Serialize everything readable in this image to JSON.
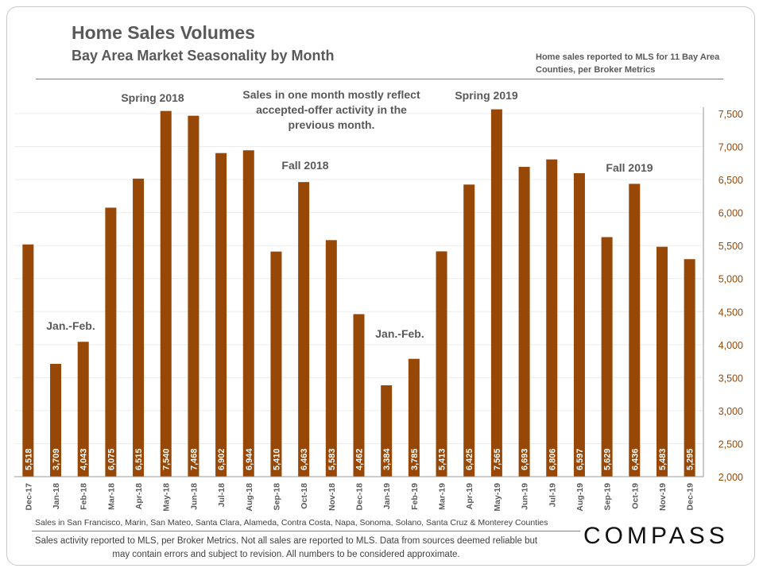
{
  "header": {
    "title": "Home Sales Volumes",
    "subtitle": "Bay Area Market Seasonality  by Month",
    "note": "Home sales reported to MLS for 11 Bay Area Counties, per Broker Metrics"
  },
  "annotations": {
    "spring2018": "Spring 2018",
    "spring2019": "Spring 2019",
    "fall2018": "Fall 2018",
    "fall2019": "Fall 2019",
    "janfeb1": "Jan.-Feb.",
    "janfeb2": "Jan.-Feb.",
    "center_note": [
      "Sales in one month mostly reflect",
      "accepted-offer activity in the",
      "previous month."
    ]
  },
  "chart_data": {
    "type": "bar",
    "categories": [
      "Dec-17",
      "Jan-18",
      "Feb-18",
      "Mar-18",
      "Apr-18",
      "May-18",
      "Jun-18",
      "Jul-18",
      "Aug-18",
      "Sep-18",
      "Oct-18",
      "Nov-18",
      "Dec-18",
      "Jan-19",
      "Feb-19",
      "Mar-19",
      "Apr-19",
      "May-19",
      "Jun-19",
      "Jul-19",
      "Aug-19",
      "Sep-19",
      "Oct-19",
      "Nov-19",
      "Dec-19"
    ],
    "values": [
      5518,
      3709,
      4043,
      6075,
      6515,
      7540,
      7468,
      6902,
      6944,
      5410,
      6463,
      5583,
      4462,
      3384,
      3785,
      5413,
      6425,
      7565,
      6693,
      6806,
      6597,
      5629,
      6436,
      5483,
      5295
    ],
    "ylim": [
      2000,
      7500
    ],
    "yticks": [
      2000,
      2500,
      3000,
      3500,
      4000,
      4500,
      5000,
      5500,
      6000,
      6500,
      7000,
      7500
    ],
    "y_axis_side": "right",
    "grid": true,
    "bar_color": "#974706",
    "axis_label_color": "#974706"
  },
  "footer": {
    "counties": "Sales in San Francisco, Marin, San Mateo, Santa Clara, Alameda, Contra Costa, Napa, Sonoma, Solano, Santa Cruz & Monterey Counties",
    "disclaimer": "Sales activity reported to MLS, per Broker Metrics. Not all sales are reported to MLS. Data from sources deemed reliable but may contain errors and subject to revision. All numbers to be considered approximate.",
    "logo": "COMPASS"
  }
}
